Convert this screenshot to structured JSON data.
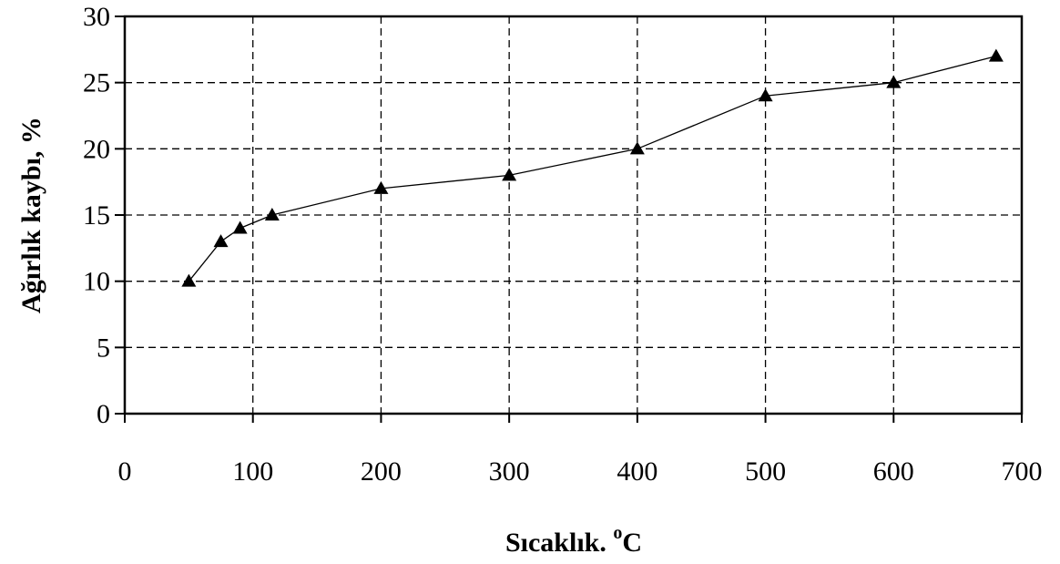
{
  "chart_data": {
    "type": "line",
    "xlabel": "Sıcaklık. ",
    "xlabel_unit_super": "o",
    "xlabel_unit": "C",
    "ylabel": "Ağırlık kaybı, %",
    "xlim": [
      0,
      700
    ],
    "ylim": [
      0,
      30
    ],
    "x_ticks": [
      0,
      100,
      200,
      300,
      400,
      500,
      600,
      700
    ],
    "y_ticks": [
      0,
      5,
      10,
      15,
      20,
      25,
      30
    ],
    "grid": true,
    "marker": "triangle",
    "series": [
      {
        "x": [
          50,
          75,
          90,
          115,
          200,
          300,
          400,
          500,
          600,
          680
        ],
        "y": [
          10,
          13,
          14,
          15,
          17,
          18,
          20,
          24,
          25,
          27
        ]
      }
    ]
  }
}
